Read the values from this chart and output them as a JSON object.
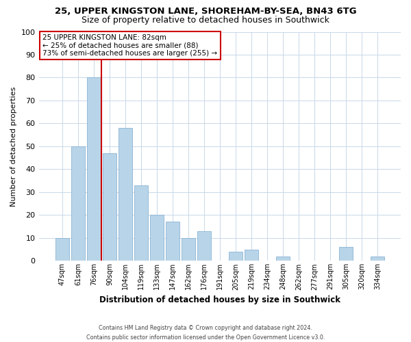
{
  "title1": "25, UPPER KINGSTON LANE, SHOREHAM-BY-SEA, BN43 6TG",
  "title2": "Size of property relative to detached houses in Southwick",
  "xlabel": "Distribution of detached houses by size in Southwick",
  "ylabel": "Number of detached properties",
  "categories": [
    "47sqm",
    "61sqm",
    "76sqm",
    "90sqm",
    "104sqm",
    "119sqm",
    "133sqm",
    "147sqm",
    "162sqm",
    "176sqm",
    "191sqm",
    "205sqm",
    "219sqm",
    "234sqm",
    "248sqm",
    "262sqm",
    "277sqm",
    "291sqm",
    "305sqm",
    "320sqm",
    "334sqm"
  ],
  "values": [
    10,
    50,
    80,
    47,
    58,
    33,
    20,
    17,
    10,
    13,
    0,
    4,
    5,
    0,
    2,
    0,
    0,
    0,
    6,
    0,
    2
  ],
  "bar_color": "#b8d4e8",
  "bar_edge_color": "#8ab4d4",
  "vline_x_index": 2,
  "vline_color": "#cc0000",
  "ylim": [
    0,
    100
  ],
  "yticks": [
    0,
    10,
    20,
    30,
    40,
    50,
    60,
    70,
    80,
    90,
    100
  ],
  "annotation_line1": "25 UPPER KINGSTON LANE: 82sqm",
  "annotation_line2": "← 25% of detached houses are smaller (88)",
  "annotation_line3": "73% of semi-detached houses are larger (255) →",
  "annotation_box_color": "#ffffff",
  "annotation_box_edge": "#cc0000",
  "footer_line1": "Contains HM Land Registry data © Crown copyright and database right 2024.",
  "footer_line2": "Contains public sector information licensed under the Open Government Licence v3.0.",
  "background_color": "#ffffff",
  "grid_color": "#c8d8e8"
}
